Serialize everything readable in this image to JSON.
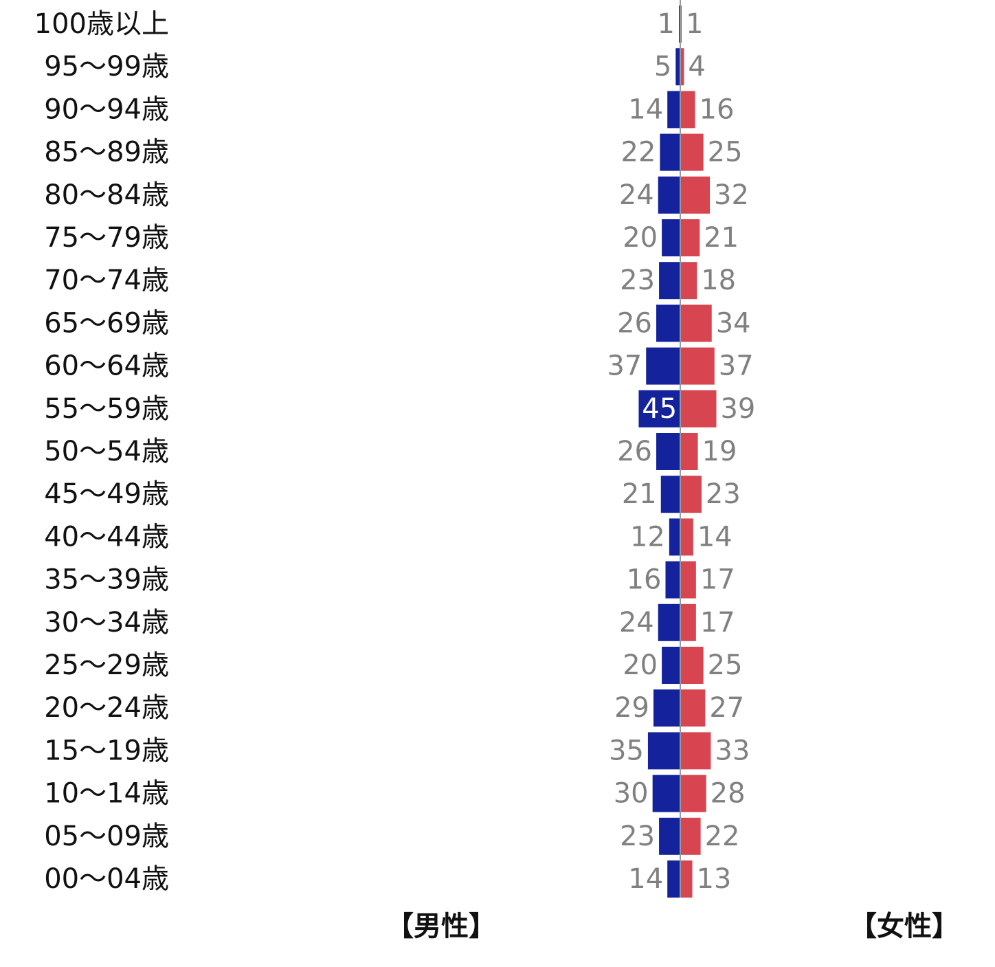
{
  "chart_data": {
    "type": "bar",
    "orientation": "horizontal",
    "layout": "population-pyramid",
    "categories": [
      "100歳以上",
      "95～99歳",
      "90～94歳",
      "85～89歳",
      "80～84歳",
      "75～79歳",
      "70～74歳",
      "65～69歳",
      "60～64歳",
      "55～59歳",
      "50～54歳",
      "45～49歳",
      "40～44歳",
      "35～39歳",
      "30～34歳",
      "25～29歳",
      "20～24歳",
      "15～19歳",
      "10～14歳",
      "05～09歳",
      "00～04歳"
    ],
    "series": [
      {
        "name": "【男性】",
        "side": "left",
        "color": "#14239c",
        "values": [
          1,
          5,
          14,
          22,
          24,
          20,
          23,
          26,
          37,
          45,
          26,
          21,
          12,
          16,
          24,
          20,
          29,
          35,
          30,
          23,
          14
        ]
      },
      {
        "name": "【女性】",
        "side": "right",
        "color": "#d64550",
        "values": [
          1,
          4,
          16,
          25,
          32,
          21,
          18,
          34,
          37,
          39,
          19,
          23,
          14,
          17,
          17,
          25,
          27,
          33,
          28,
          22,
          13
        ]
      }
    ],
    "highlight": {
      "series": 0,
      "category": "55～59歳"
    },
    "label_color": "#808080",
    "highlight_label_color": "#ffffff",
    "axis_line_color": "#999999",
    "grid": false
  },
  "legend": {
    "male_label": "【男性】",
    "female_label": "【女性】"
  }
}
